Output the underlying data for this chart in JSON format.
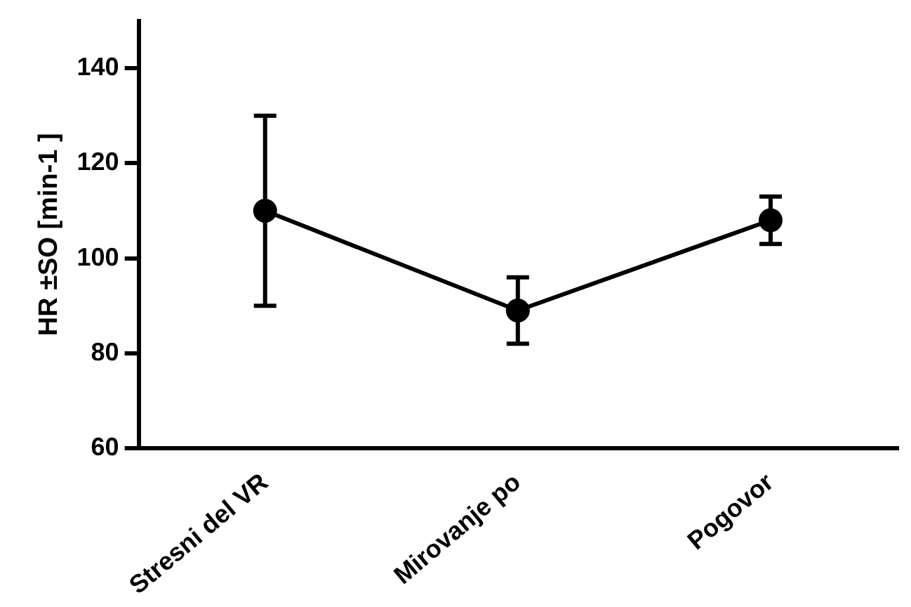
{
  "chart_data": {
    "type": "line",
    "ylabel": "HR ±SO [min-1 ]",
    "categories": [
      "Stresni del VR",
      "Mirovanje po",
      "Pogovor"
    ],
    "values": [
      110,
      89,
      108
    ],
    "color": "#000000",
    "errors": [
      [
        90,
        130
      ],
      [
        82,
        96
      ],
      [
        103,
        113
      ]
    ],
    "ylim": [
      60,
      150
    ],
    "yticks": [
      60,
      80,
      100,
      120,
      140
    ],
    "grid": false,
    "marker": "circle",
    "line_style": "solid"
  }
}
